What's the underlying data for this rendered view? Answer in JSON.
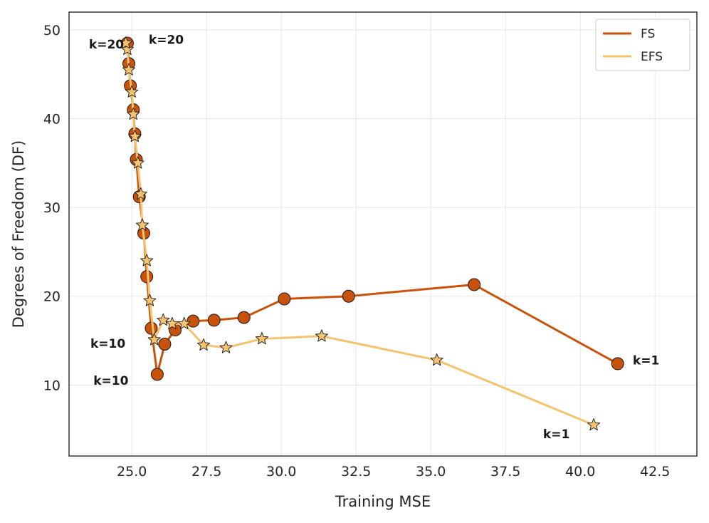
{
  "chart_data": {
    "type": "line",
    "title": "",
    "xlabel": "Training MSE",
    "ylabel": "Degrees of Freedom (DF)",
    "xlim": [
      22.9,
      43.9
    ],
    "ylim": [
      2,
      52
    ],
    "xticks": [
      25.0,
      27.5,
      30.0,
      32.5,
      35.0,
      37.5,
      40.0,
      42.5
    ],
    "yticks": [
      10,
      20,
      30,
      40,
      50
    ],
    "grid": true,
    "legend_position": "top-right",
    "series": [
      {
        "name": "FS",
        "color": "#c9520a",
        "marker": "circle",
        "x": [
          41.25,
          36.45,
          32.25,
          30.1,
          28.75,
          27.75,
          27.05,
          26.45,
          26.1,
          25.85,
          25.65,
          25.5,
          25.4,
          25.25,
          25.15,
          25.1,
          25.05,
          24.95,
          24.9,
          24.85
        ],
        "y": [
          12.4,
          21.3,
          20.0,
          19.7,
          17.6,
          17.3,
          17.2,
          16.2,
          14.6,
          11.2,
          16.4,
          22.2,
          27.1,
          31.2,
          35.4,
          38.3,
          41.0,
          43.7,
          46.2,
          48.5
        ]
      },
      {
        "name": "EFS",
        "color": "#f5c36e",
        "marker": "star",
        "x": [
          40.45,
          35.2,
          31.35,
          29.35,
          28.15,
          27.4,
          26.75,
          26.35,
          26.05,
          25.75,
          25.6,
          25.5,
          25.35,
          25.3,
          25.2,
          25.1,
          25.05,
          25.0,
          24.9,
          24.85,
          24.8
        ],
        "y": [
          5.5,
          12.8,
          15.5,
          15.2,
          14.2,
          14.5,
          16.9,
          16.9,
          17.3,
          15.1,
          19.5,
          24.0,
          28.0,
          31.5,
          35.0,
          38.0,
          40.5,
          43.0,
          45.5,
          47.8,
          48.5
        ]
      }
    ],
    "annotations": [
      {
        "text": "k=20",
        "x": 24.15,
        "y": 48.4
      },
      {
        "text": "k=20",
        "x": 26.15,
        "y": 48.9
      },
      {
        "text": "k=10",
        "x": 24.2,
        "y": 14.7
      },
      {
        "text": "k=10",
        "x": 24.3,
        "y": 10.5
      },
      {
        "text": "k=1",
        "x": 42.2,
        "y": 12.8
      },
      {
        "text": "k=1",
        "x": 39.2,
        "y": 4.5
      }
    ]
  }
}
